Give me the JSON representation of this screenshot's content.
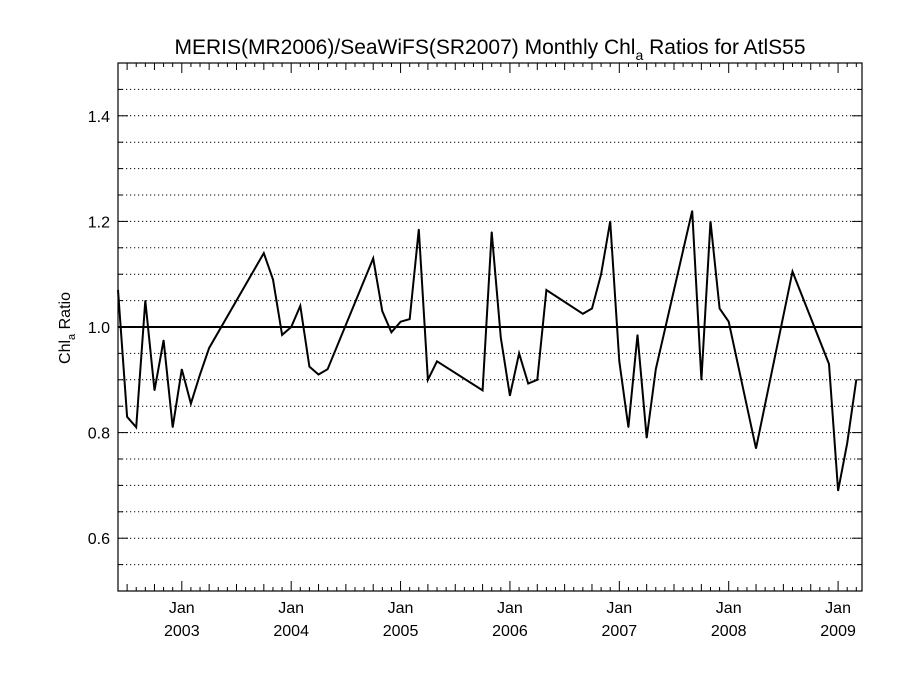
{
  "chart_data": {
    "type": "line",
    "title": {
      "prefix": "MERIS(MR2006)/SeaWiFS(SR2007) Monthly Chl",
      "subscript": "a",
      "suffix": " Ratios for AtlS55"
    },
    "ylabel": {
      "prefix": "Chl",
      "subscript": "a",
      "suffix": " Ratio"
    },
    "xlabel": "",
    "xlim": [
      "2002-06",
      "2009-03-20"
    ],
    "ylim": [
      0.5,
      1.5
    ],
    "yticks": [
      {
        "value": 0.6,
        "label": "0.6"
      },
      {
        "value": 0.8,
        "label": "0.8"
      },
      {
        "value": 1.0,
        "label": "1.0"
      },
      {
        "value": 1.2,
        "label": "1.2"
      },
      {
        "value": 1.4,
        "label": "1.4"
      }
    ],
    "xticks": [
      {
        "date": "2003-01",
        "month": "Jan",
        "year": "2003"
      },
      {
        "date": "2004-01",
        "month": "Jan",
        "year": "2004"
      },
      {
        "date": "2005-01",
        "month": "Jan",
        "year": "2005"
      },
      {
        "date": "2006-01",
        "month": "Jan",
        "year": "2006"
      },
      {
        "date": "2007-01",
        "month": "Jan",
        "year": "2007"
      },
      {
        "date": "2008-01",
        "month": "Jan",
        "year": "2008"
      },
      {
        "date": "2009-01",
        "month": "Jan",
        "year": "2009"
      }
    ],
    "grid": "horizontal dotted lines every 0.05",
    "reference_line": 1.0,
    "series": [
      {
        "color": "#000000",
        "x": [
          "2002-06",
          "2002-07",
          "2002-08",
          "2002-09",
          "2002-10",
          "2002-11",
          "2002-12",
          "2003-01",
          "2003-02",
          "2003-03",
          "2003-04",
          "2003-10",
          "2003-11",
          "2003-12",
          "2004-01",
          "2004-02",
          "2004-03",
          "2004-04",
          "2004-05",
          "2004-10",
          "2004-11",
          "2004-12",
          "2005-01",
          "2005-02",
          "2005-03",
          "2005-04",
          "2005-05",
          "2005-10",
          "2005-11",
          "2005-12",
          "2006-01",
          "2006-02",
          "2006-03",
          "2006-04",
          "2006-05",
          "2006-09",
          "2006-10",
          "2006-11",
          "2006-12",
          "2007-01",
          "2007-02",
          "2007-03",
          "2007-04",
          "2007-05",
          "2007-09",
          "2007-10",
          "2007-11",
          "2007-12",
          "2008-01",
          "2008-04",
          "2008-08",
          "2008-12",
          "2009-01",
          "2009-02",
          "2009-03"
        ],
        "y": [
          1.07,
          0.83,
          0.81,
          1.05,
          0.88,
          0.975,
          0.81,
          0.92,
          0.855,
          0.91,
          0.96,
          1.14,
          1.09,
          0.985,
          1.0,
          1.04,
          0.925,
          0.91,
          0.92,
          1.13,
          1.03,
          0.99,
          1.01,
          1.015,
          1.185,
          0.9,
          0.935,
          0.88,
          1.18,
          0.98,
          0.87,
          0.95,
          0.893,
          0.9,
          1.07,
          1.025,
          1.035,
          1.1,
          1.2,
          0.935,
          0.81,
          0.985,
          0.79,
          0.92,
          1.22,
          0.9,
          1.2,
          1.035,
          1.01,
          0.77,
          1.105,
          0.93,
          0.69,
          0.78,
          0.9
        ]
      }
    ]
  }
}
